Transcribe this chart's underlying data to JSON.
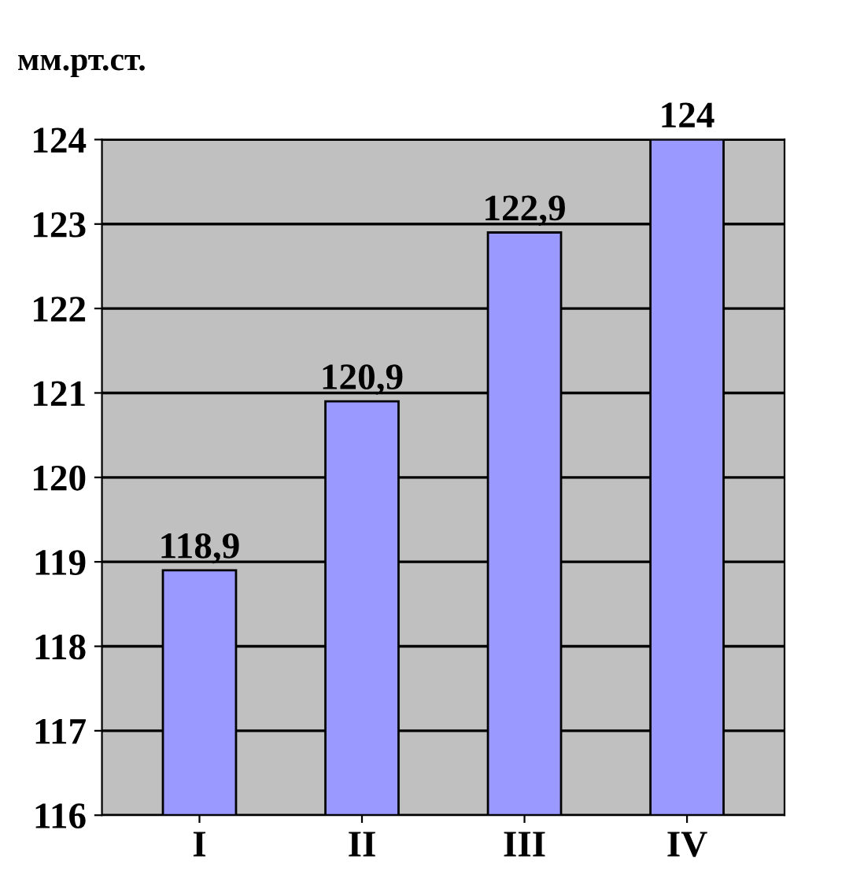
{
  "chart_data": {
    "type": "bar",
    "ylabel": "мм.рт.ст.",
    "categories": [
      "I",
      "II",
      "III",
      "IV"
    ],
    "values": [
      118.9,
      120.9,
      122.9,
      124
    ],
    "value_labels": [
      "118,9",
      "120,9",
      "122,9",
      "124"
    ],
    "color": "#9999ff",
    "ylim": [
      116,
      124
    ],
    "yticks": [
      116,
      117,
      118,
      119,
      120,
      121,
      122,
      123,
      124
    ],
    "grid": "y",
    "legend": false
  }
}
